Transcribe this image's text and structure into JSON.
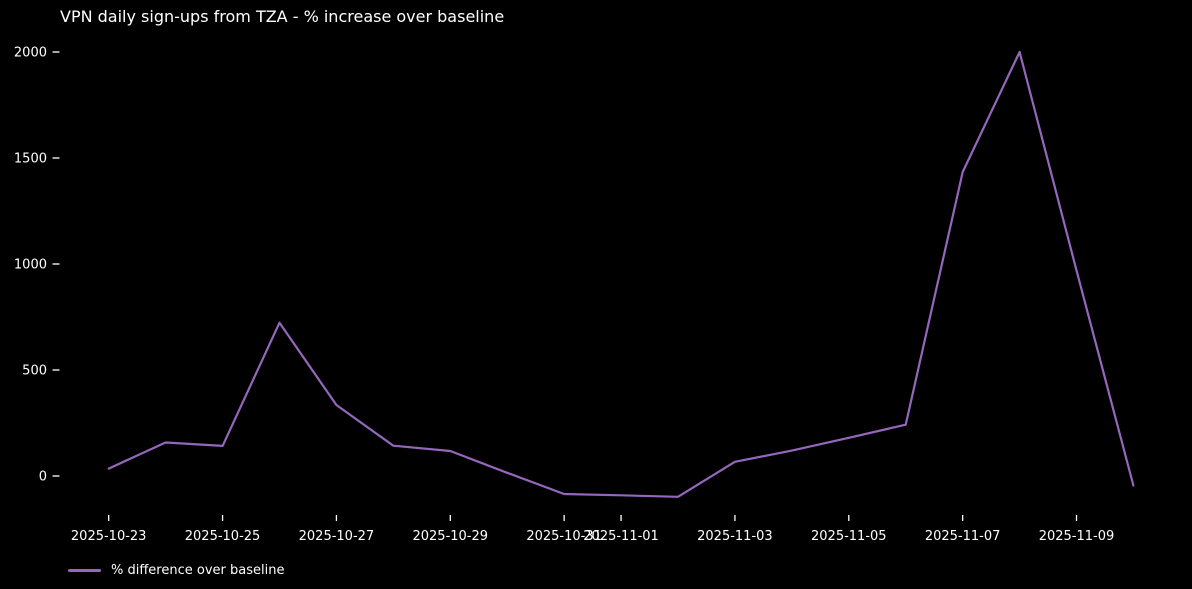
{
  "figure": {
    "title": "VPN daily sign-ups from TZA - % increase over baseline"
  },
  "legend": {
    "label": "% difference over baseline"
  },
  "colors": {
    "background": "#000000",
    "line": "#9467bd",
    "text": "#ffffff"
  },
  "chart_data": {
    "type": "line",
    "title": "VPN daily sign-ups from TZA - % increase over baseline",
    "xlabel": "",
    "ylabel": "",
    "grid": false,
    "legend_position": "lower left, below axes",
    "ylim": [
      -200,
      2100
    ],
    "y_ticks": [
      0,
      500,
      1000,
      1500,
      2000
    ],
    "x_tick_labels": [
      "2025-10-23",
      "2025-10-25",
      "2025-10-27",
      "2025-10-29",
      "2025-10-31",
      "2025-11-01",
      "2025-11-03",
      "2025-11-05",
      "2025-11-07",
      "2025-11-09"
    ],
    "x": [
      "2025-10-23",
      "2025-10-24",
      "2025-10-25",
      "2025-10-26",
      "2025-10-27",
      "2025-10-28",
      "2025-10-29",
      "2025-10-30",
      "2025-10-31",
      "2025-11-01",
      "2025-11-02",
      "2025-11-03",
      "2025-11-04",
      "2025-11-05",
      "2025-11-06",
      "2025-11-07",
      "2025-11-08",
      "2025-11-09",
      "2025-11-10"
    ],
    "series": [
      {
        "name": "% difference over baseline",
        "values": [
          35,
          158,
          142,
          723,
          335,
          143,
          118,
          15,
          -85,
          -91,
          -98,
          67,
          120,
          180,
          242,
          1434,
          2000,
          970,
          -45
        ]
      }
    ]
  }
}
